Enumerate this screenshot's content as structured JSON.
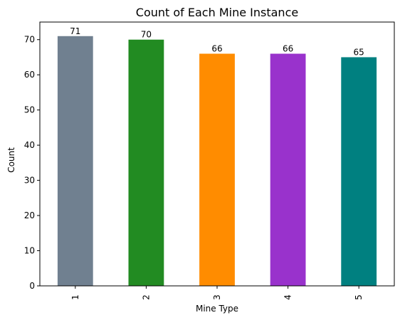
{
  "chart_data": {
    "type": "bar",
    "title": "Count of Each Mine Instance",
    "xlabel": "Mine Type",
    "ylabel": "Count",
    "categories": [
      "1",
      "2",
      "3",
      "4",
      "5"
    ],
    "values": [
      71,
      70,
      66,
      66,
      65
    ],
    "colors": [
      "#708090",
      "#228b22",
      "#ff8c00",
      "#9932cc",
      "#008080"
    ],
    "ylim": [
      0,
      75
    ],
    "yticks": [
      0,
      10,
      20,
      30,
      40,
      50,
      60,
      70
    ],
    "grid": false,
    "legend": "none"
  }
}
